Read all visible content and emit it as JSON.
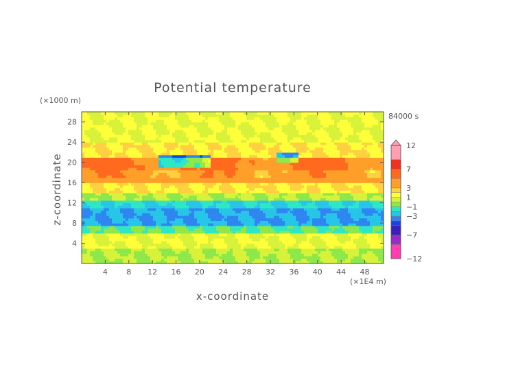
{
  "chart_data": {
    "type": "heatmap",
    "title": "Potential temperature",
    "xlabel": "x-coordinate",
    "ylabel": "z-coordinate",
    "x_unit": "(×1E4 m)",
    "y_unit": "(×1000 m)",
    "time_label": "84000 s",
    "x_ticks": [
      4,
      8,
      12,
      16,
      20,
      24,
      28,
      32,
      36,
      40,
      44,
      48
    ],
    "y_ticks": [
      4,
      8,
      12,
      16,
      20,
      24,
      28
    ],
    "xlim": [
      0,
      51.2
    ],
    "ylim": [
      0,
      30
    ],
    "colorbar": {
      "levels": [
        -12,
        -9,
        -7,
        -5,
        -4,
        -3,
        -2,
        -1,
        0,
        1,
        2,
        3,
        5,
        7,
        9,
        12
      ],
      "labels": [
        "12",
        "7",
        "3",
        "1",
        "−1",
        "−3",
        "−7",
        "−12"
      ],
      "label_values": [
        12,
        7,
        3,
        1,
        -1,
        -3,
        -7,
        -12
      ],
      "colors": [
        "#ff3fb0",
        "#9b2bc8",
        "#3a1fb8",
        "#1f3fe6",
        "#2f86f0",
        "#27c5e8",
        "#2fe6c5",
        "#8fe84a",
        "#d8f23a",
        "#ffff3a",
        "#ffd040",
        "#ff9f2a",
        "#ff6a1f",
        "#f03020",
        "#ff9fb0"
      ]
    },
    "bands": [
      {
        "z": [
          0,
          3
        ],
        "anomaly": 0
      },
      {
        "z": [
          3,
          6
        ],
        "anomaly": 1
      },
      {
        "z": [
          6,
          7.5
        ],
        "anomaly": -1
      },
      {
        "z": [
          7.5,
          10.8
        ],
        "anomaly": -3
      },
      {
        "z": [
          10.8,
          12.5
        ],
        "anomaly": -2
      },
      {
        "z": [
          12.5,
          14
        ],
        "anomaly": 0
      },
      {
        "z": [
          14,
          16
        ],
        "anomaly": 2
      },
      {
        "z": [
          16,
          18.5
        ],
        "anomaly": 4
      },
      {
        "z": [
          18.5,
          21
        ],
        "anomaly": 5
      },
      {
        "z": [
          21,
          24
        ],
        "anomaly": 2
      },
      {
        "z": [
          24,
          30
        ],
        "anomaly": 1
      }
    ]
  }
}
